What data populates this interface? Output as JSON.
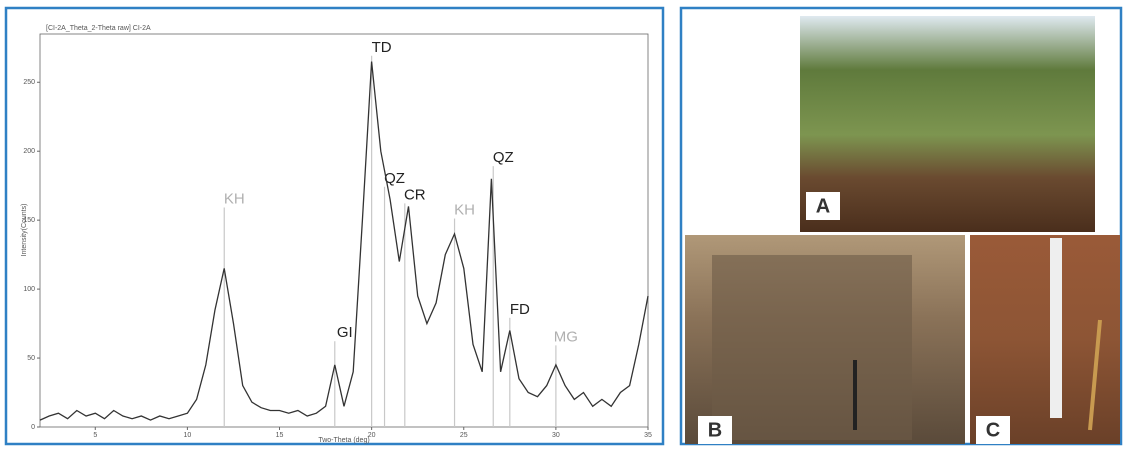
{
  "chart_data": {
    "type": "line",
    "title": "[CI-2A_Theta_2-Theta raw] CI-2A",
    "x_label": "Two-Theta (deg)",
    "y_label": "Intensity(Counts)",
    "xlim": [
      2,
      35
    ],
    "ylim": [
      0,
      285
    ],
    "xticks": [
      5,
      10,
      15,
      20,
      25,
      30,
      35
    ],
    "yticks": [
      0,
      50,
      100,
      150,
      200,
      250
    ],
    "series": [
      {
        "color": "#333333",
        "x": [
          2,
          2.5,
          3,
          3.5,
          4,
          4.5,
          5,
          5.5,
          6,
          6.5,
          7,
          7.5,
          8,
          8.5,
          9,
          9.5,
          10,
          10.5,
          11,
          11.5,
          12,
          12.5,
          13,
          13.5,
          14,
          14.5,
          15,
          15.5,
          16,
          16.5,
          17,
          17.5,
          18,
          18.5,
          19,
          19.5,
          20,
          20.5,
          21,
          21.5,
          22,
          22.5,
          23,
          23.5,
          24,
          24.5,
          25,
          25.5,
          26,
          26.5,
          27,
          27.5,
          28,
          28.5,
          29,
          29.5,
          30,
          30.5,
          31,
          31.5,
          32,
          32.5,
          33,
          33.5,
          34,
          34.5,
          35
        ],
        "values": [
          5,
          8,
          10,
          6,
          12,
          8,
          10,
          6,
          12,
          8,
          6,
          8,
          5,
          8,
          6,
          8,
          10,
          20,
          45,
          85,
          115,
          75,
          30,
          18,
          14,
          12,
          12,
          10,
          12,
          8,
          10,
          15,
          45,
          15,
          40,
          150,
          265,
          200,
          165,
          120,
          160,
          95,
          75,
          90,
          125,
          140,
          115,
          60,
          40,
          180,
          40,
          70,
          35,
          25,
          22,
          30,
          45,
          30,
          20,
          25,
          15,
          20,
          15,
          25,
          30,
          60,
          95
        ]
      }
    ],
    "annotations": [
      {
        "label": "KH",
        "x": 12,
        "y": 165,
        "color": "#b0b0b0"
      },
      {
        "label": "GI",
        "x": 18,
        "y": 68,
        "color": "#222222"
      },
      {
        "label": "TD",
        "x": 20,
        "y": 275,
        "color": "#222222"
      },
      {
        "label": "QZ",
        "x": 20.7,
        "y": 180,
        "color": "#222222"
      },
      {
        "label": "CR",
        "x": 21.8,
        "y": 168,
        "color": "#222222"
      },
      {
        "label": "KH",
        "x": 24.5,
        "y": 157,
        "color": "#b0b0b0"
      },
      {
        "label": "QZ",
        "x": 26.6,
        "y": 195,
        "color": "#222222"
      },
      {
        "label": "FD",
        "x": 27.5,
        "y": 85,
        "color": "#222222"
      },
      {
        "label": "MG",
        "x": 30,
        "y": 65,
        "color": "#b0b0b0"
      }
    ]
  },
  "photos": {
    "labels": [
      "A",
      "B",
      "C"
    ]
  }
}
